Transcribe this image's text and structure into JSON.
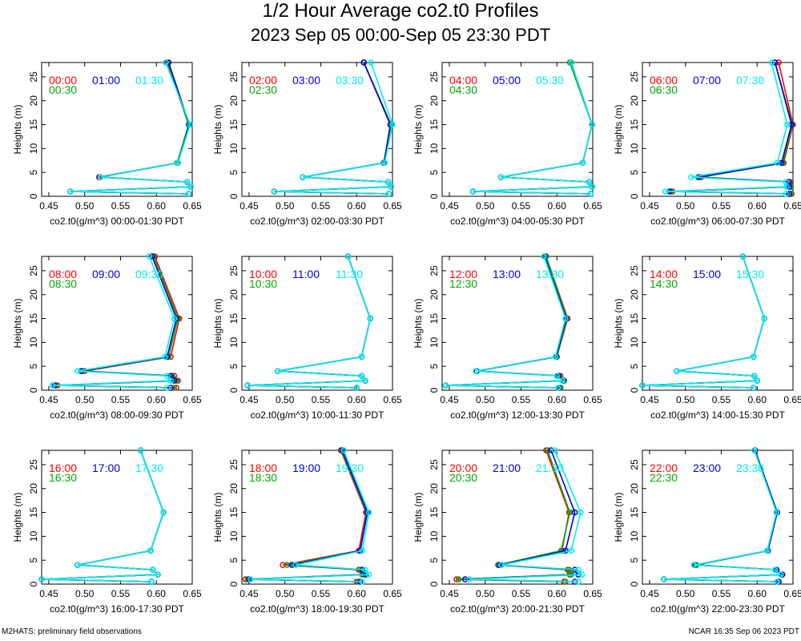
{
  "title": "1/2 Hour Average co2.t0 Profiles",
  "subtitle": "2023 Sep 05 00:00-Sep 05 23:30 PDT",
  "footer_left": "M2HATS: preliminary field observations",
  "footer_right": "NCAR 16:35 Sep 06 2023 PDT",
  "colors": {
    "first": "#ff0000",
    "second": "#00aa00",
    "third": "#0000dd",
    "fourth": "#00eeee"
  },
  "chart_data": [
    {
      "type": "line",
      "xlabel": "co2.t0(g/m^3) 00:00-01:30 PDT",
      "ylabel": "Heights (m)",
      "xlim": [
        0.44,
        0.65
      ],
      "ylim": [
        0,
        28
      ],
      "xticks": [
        "0.45",
        "0.50",
        "0.55",
        "0.60",
        "0.65"
      ],
      "yticks": [
        "0",
        "5",
        "10",
        "15",
        "20",
        "25"
      ],
      "heights": [
        0.5,
        1,
        2,
        3,
        4,
        7,
        15,
        28
      ],
      "series": [
        {
          "name": "00:00",
          "values": [
            0.645,
            0.48,
            0.648,
            0.643,
            0.52,
            0.63,
            0.645,
            0.615
          ]
        },
        {
          "name": "00:30",
          "values": [
            0.645,
            0.48,
            0.648,
            0.643,
            0.521,
            0.629,
            0.645,
            0.616
          ]
        },
        {
          "name": "01:00",
          "values": [
            0.645,
            0.48,
            0.648,
            0.643,
            0.521,
            0.63,
            0.646,
            0.617
          ]
        },
        {
          "name": "01:30",
          "values": [
            0.645,
            0.48,
            0.648,
            0.643,
            0.522,
            0.63,
            0.647,
            0.613
          ]
        }
      ]
    },
    {
      "type": "line",
      "xlabel": "co2.t0(g/m^3) 02:00-03:30 PDT",
      "ylabel": "Heights (m)",
      "xlim": [
        0.44,
        0.65
      ],
      "ylim": [
        0,
        28
      ],
      "xticks": [
        "0.45",
        "0.50",
        "0.55",
        "0.60",
        "0.65"
      ],
      "yticks": [
        "0",
        "5",
        "10",
        "15",
        "20",
        "25"
      ],
      "heights": [
        0.5,
        1,
        2,
        3,
        4,
        7,
        15,
        28
      ],
      "series": [
        {
          "name": "02:00",
          "values": [
            0.645,
            0.485,
            0.648,
            0.644,
            0.525,
            0.638,
            0.648,
            0.61
          ]
        },
        {
          "name": "02:30",
          "values": [
            0.645,
            0.485,
            0.648,
            0.644,
            0.525,
            0.638,
            0.648,
            0.61
          ]
        },
        {
          "name": "03:00",
          "values": [
            0.645,
            0.485,
            0.648,
            0.644,
            0.525,
            0.638,
            0.647,
            0.61
          ]
        },
        {
          "name": "03:30",
          "values": [
            0.645,
            0.485,
            0.648,
            0.644,
            0.525,
            0.639,
            0.65,
            0.62
          ]
        }
      ]
    },
    {
      "type": "line",
      "xlabel": "co2.t0(g/m^3) 04:00-05:30 PDT",
      "ylabel": "Heights (m)",
      "xlim": [
        0.44,
        0.65
      ],
      "ylim": [
        0,
        28
      ],
      "xticks": [
        "0.45",
        "0.50",
        "0.55",
        "0.60",
        "0.65"
      ],
      "yticks": [
        "0",
        "5",
        "10",
        "15",
        "20",
        "25"
      ],
      "heights": [
        0.5,
        1,
        2,
        3,
        4,
        7,
        15,
        28
      ],
      "series": [
        {
          "name": "04:00",
          "values": [
            0.647,
            0.483,
            0.649,
            0.645,
            0.522,
            0.636,
            0.649,
            0.62
          ]
        },
        {
          "name": "04:30",
          "values": [
            0.647,
            0.483,
            0.649,
            0.645,
            0.522,
            0.636,
            0.649,
            0.618
          ]
        },
        {
          "name": "05:00",
          "values": [
            0.647,
            0.483,
            0.649,
            0.645,
            0.522,
            0.636,
            0.649,
            0.62
          ]
        },
        {
          "name": "05:30",
          "values": [
            0.647,
            0.483,
            0.649,
            0.645,
            0.522,
            0.636,
            0.649,
            0.62
          ]
        }
      ]
    },
    {
      "type": "line",
      "xlabel": "co2.t0(g/m^3) 06:00-07:30 PDT",
      "ylabel": "Heights (m)",
      "xlim": [
        0.44,
        0.65
      ],
      "ylim": [
        0,
        28
      ],
      "xticks": [
        "0.45",
        "0.50",
        "0.55",
        "0.60",
        "0.65"
      ],
      "yticks": [
        "0",
        "5",
        "10",
        "15",
        "20",
        "25"
      ],
      "heights": [
        0.5,
        1,
        2,
        3,
        4,
        7,
        15,
        28
      ],
      "series": [
        {
          "name": "06:00",
          "values": [
            0.648,
            0.482,
            0.647,
            0.646,
            0.522,
            0.637,
            0.65,
            0.63
          ]
        },
        {
          "name": "06:30",
          "values": [
            0.647,
            0.48,
            0.647,
            0.645,
            0.52,
            0.636,
            0.649,
            0.625
          ]
        },
        {
          "name": "07:00",
          "values": [
            0.645,
            0.478,
            0.645,
            0.644,
            0.518,
            0.634,
            0.648,
            0.625
          ]
        },
        {
          "name": "07:30",
          "values": [
            0.64,
            0.472,
            0.641,
            0.64,
            0.508,
            0.628,
            0.642,
            0.62
          ]
        }
      ]
    },
    {
      "type": "line",
      "xlabel": "co2.t0(g/m^3) 08:00-09:30 PDT",
      "ylabel": "Heights (m)",
      "xlim": [
        0.44,
        0.65
      ],
      "ylim": [
        0,
        28
      ],
      "xticks": [
        "0.45",
        "0.50",
        "0.55",
        "0.60",
        "0.65"
      ],
      "yticks": [
        "0",
        "5",
        "10",
        "15",
        "20",
        "25"
      ],
      "heights": [
        0.5,
        1,
        2,
        3,
        4,
        7,
        15,
        28
      ],
      "series": [
        {
          "name": "08:00",
          "values": [
            0.628,
            0.462,
            0.63,
            0.625,
            0.5,
            0.62,
            0.632,
            0.598
          ]
        },
        {
          "name": "08:30",
          "values": [
            0.625,
            0.46,
            0.628,
            0.622,
            0.497,
            0.617,
            0.63,
            0.596
          ]
        },
        {
          "name": "09:00",
          "values": [
            0.62,
            0.458,
            0.625,
            0.62,
            0.495,
            0.615,
            0.628,
            0.594
          ]
        },
        {
          "name": "09:30",
          "values": [
            0.615,
            0.455,
            0.62,
            0.615,
            0.49,
            0.612,
            0.625,
            0.59
          ]
        }
      ]
    },
    {
      "type": "line",
      "xlabel": "co2.t0(g/m^3) 10:00-11:30 PDT",
      "ylabel": "Heights (m)",
      "xlim": [
        0.44,
        0.65
      ],
      "ylim": [
        0,
        28
      ],
      "xticks": [
        "0.45",
        "0.50",
        "0.55",
        "0.60",
        "0.65"
      ],
      "yticks": [
        "0",
        "5",
        "10",
        "15",
        "20",
        "25"
      ],
      "heights": [
        0.5,
        1,
        2,
        3,
        4,
        7,
        15,
        28
      ],
      "series": [
        {
          "name": "10:00",
          "values": [
            0.6,
            0.448,
            0.612,
            0.607,
            0.49,
            0.607,
            0.619,
            0.588
          ]
        },
        {
          "name": "10:30",
          "values": [
            0.6,
            0.448,
            0.612,
            0.607,
            0.49,
            0.607,
            0.619,
            0.588
          ]
        },
        {
          "name": "11:00",
          "values": [
            0.6,
            0.448,
            0.612,
            0.607,
            0.49,
            0.607,
            0.619,
            0.588
          ]
        },
        {
          "name": "11:30",
          "values": [
            0.6,
            0.448,
            0.612,
            0.607,
            0.49,
            0.607,
            0.619,
            0.588
          ]
        }
      ]
    },
    {
      "type": "line",
      "xlabel": "co2.t0(g/m^3) 12:00-13:30 PDT",
      "ylabel": "Heights (m)",
      "xlim": [
        0.44,
        0.65
      ],
      "ylim": [
        0,
        28
      ],
      "xticks": [
        "0.45",
        "0.50",
        "0.55",
        "0.60",
        "0.65"
      ],
      "yticks": [
        "0",
        "5",
        "10",
        "15",
        "20",
        "25"
      ],
      "heights": [
        0.5,
        1,
        2,
        3,
        4,
        7,
        15,
        28
      ],
      "series": [
        {
          "name": "12:00",
          "values": [
            0.605,
            0.445,
            0.61,
            0.605,
            0.488,
            0.6,
            0.615,
            0.585
          ]
        },
        {
          "name": "12:30",
          "values": [
            0.605,
            0.445,
            0.61,
            0.603,
            0.488,
            0.6,
            0.614,
            0.585
          ]
        },
        {
          "name": "13:00",
          "values": [
            0.603,
            0.445,
            0.609,
            0.602,
            0.488,
            0.599,
            0.613,
            0.583
          ]
        },
        {
          "name": "13:30",
          "values": [
            0.602,
            0.445,
            0.608,
            0.6,
            0.487,
            0.598,
            0.612,
            0.582
          ]
        }
      ]
    },
    {
      "type": "line",
      "xlabel": "co2.t0(g/m^3) 14:00-15:30 PDT",
      "ylabel": "Heights (m)",
      "xlim": [
        0.44,
        0.65
      ],
      "ylim": [
        0,
        28
      ],
      "xticks": [
        "0.45",
        "0.50",
        "0.55",
        "0.60",
        "0.65"
      ],
      "yticks": [
        "0",
        "5",
        "10",
        "15",
        "20",
        "25"
      ],
      "heights": [
        0.5,
        1,
        2,
        3,
        4,
        7,
        15,
        28
      ],
      "series": [
        {
          "name": "14:00",
          "values": [
            0.595,
            0.44,
            0.6,
            0.596,
            0.488,
            0.595,
            0.61,
            0.58
          ]
        },
        {
          "name": "14:30",
          "values": [
            0.595,
            0.44,
            0.6,
            0.596,
            0.488,
            0.595,
            0.61,
            0.58
          ]
        },
        {
          "name": "15:00",
          "values": [
            0.595,
            0.44,
            0.6,
            0.596,
            0.488,
            0.595,
            0.61,
            0.58
          ]
        },
        {
          "name": "15:30",
          "values": [
            0.595,
            0.44,
            0.6,
            0.596,
            0.488,
            0.595,
            0.61,
            0.58
          ]
        }
      ]
    },
    {
      "type": "line",
      "xlabel": "co2.t0(g/m^3) 16:00-17:30 PDT",
      "ylabel": "Heights (m)",
      "xlim": [
        0.44,
        0.65
      ],
      "ylim": [
        0,
        28
      ],
      "xticks": [
        "0.45",
        "0.50",
        "0.55",
        "0.60",
        "0.65"
      ],
      "yticks": [
        "0",
        "5",
        "10",
        "15",
        "20",
        "25"
      ],
      "heights": [
        0.5,
        1,
        2,
        3,
        4,
        7,
        15,
        28
      ],
      "series": [
        {
          "name": "16:00",
          "values": [
            0.593,
            0.44,
            0.602,
            0.595,
            0.49,
            0.592,
            0.61,
            0.578
          ]
        },
        {
          "name": "16:30",
          "values": [
            0.593,
            0.44,
            0.602,
            0.595,
            0.49,
            0.592,
            0.61,
            0.578
          ]
        },
        {
          "name": "17:00",
          "values": [
            0.593,
            0.44,
            0.602,
            0.595,
            0.49,
            0.592,
            0.61,
            0.578
          ]
        },
        {
          "name": "17:30",
          "values": [
            0.593,
            0.44,
            0.602,
            0.595,
            0.49,
            0.592,
            0.61,
            0.578
          ]
        }
      ]
    },
    {
      "type": "line",
      "xlabel": "co2.t0(g/m^3) 18:00-19:30 PDT",
      "ylabel": "Heights (m)",
      "xlim": [
        0.44,
        0.65
      ],
      "ylim": [
        0,
        28
      ],
      "xticks": [
        "0.45",
        "0.50",
        "0.55",
        "0.60",
        "0.65"
      ],
      "yticks": [
        "0",
        "5",
        "10",
        "15",
        "20",
        "25"
      ],
      "heights": [
        0.5,
        1,
        2,
        3,
        4,
        7,
        15,
        28
      ],
      "series": [
        {
          "name": "18:00",
          "values": [
            0.6,
            0.445,
            0.608,
            0.603,
            0.497,
            0.603,
            0.613,
            0.578
          ]
        },
        {
          "name": "18:30",
          "values": [
            0.602,
            0.448,
            0.61,
            0.605,
            0.503,
            0.605,
            0.614,
            0.579
          ]
        },
        {
          "name": "19:00",
          "values": [
            0.605,
            0.45,
            0.613,
            0.608,
            0.51,
            0.605,
            0.615,
            0.58
          ]
        },
        {
          "name": "19:30",
          "values": [
            0.608,
            0.452,
            0.617,
            0.612,
            0.515,
            0.608,
            0.617,
            0.582
          ]
        }
      ]
    },
    {
      "type": "line",
      "xlabel": "co2.t0(g/m^3) 20:00-21:30 PDT",
      "ylabel": "Heights (m)",
      "xlim": [
        0.44,
        0.65
      ],
      "ylim": [
        0,
        28
      ],
      "xticks": [
        "0.45",
        "0.50",
        "0.55",
        "0.60",
        "0.65"
      ],
      "yticks": [
        "0",
        "5",
        "10",
        "15",
        "20",
        "25"
      ],
      "heights": [
        0.5,
        1,
        2,
        3,
        4,
        7,
        15,
        28
      ],
      "series": [
        {
          "name": "20:00",
          "values": [
            0.61,
            0.46,
            0.618,
            0.615,
            0.518,
            0.607,
            0.617,
            0.585
          ]
        },
        {
          "name": "20:30",
          "values": [
            0.612,
            0.463,
            0.62,
            0.617,
            0.518,
            0.606,
            0.618,
            0.587
          ]
        },
        {
          "name": "21:00",
          "values": [
            0.625,
            0.472,
            0.63,
            0.625,
            0.52,
            0.612,
            0.625,
            0.592
          ]
        },
        {
          "name": "21:30",
          "values": [
            0.63,
            0.478,
            0.635,
            0.63,
            0.523,
            0.62,
            0.633,
            0.597
          ]
        }
      ]
    },
    {
      "type": "line",
      "xlabel": "co2.t0(g/m^3) 22:00-23:30 PDT",
      "ylabel": "Heights (m)",
      "xlim": [
        0.44,
        0.65
      ],
      "ylim": [
        0,
        28
      ],
      "xticks": [
        "0.45",
        "0.50",
        "0.55",
        "0.60",
        "0.65"
      ],
      "yticks": [
        "0",
        "5",
        "10",
        "15",
        "20",
        "25"
      ],
      "heights": [
        0.5,
        1,
        2,
        3,
        4,
        7,
        15,
        28
      ],
      "series": [
        {
          "name": "22:00",
          "values": [
            0.63,
            0.47,
            0.635,
            0.627,
            0.515,
            0.615,
            0.628,
            0.597
          ]
        },
        {
          "name": "22:30",
          "values": [
            0.63,
            0.47,
            0.635,
            0.627,
            0.515,
            0.615,
            0.628,
            0.597
          ]
        },
        {
          "name": "23:00",
          "values": [
            0.63,
            0.47,
            0.635,
            0.627,
            0.513,
            0.615,
            0.628,
            0.597
          ]
        },
        {
          "name": "23:30",
          "values": [
            0.628,
            0.47,
            0.633,
            0.625,
            0.512,
            0.614,
            0.627,
            0.596
          ]
        }
      ]
    }
  ]
}
